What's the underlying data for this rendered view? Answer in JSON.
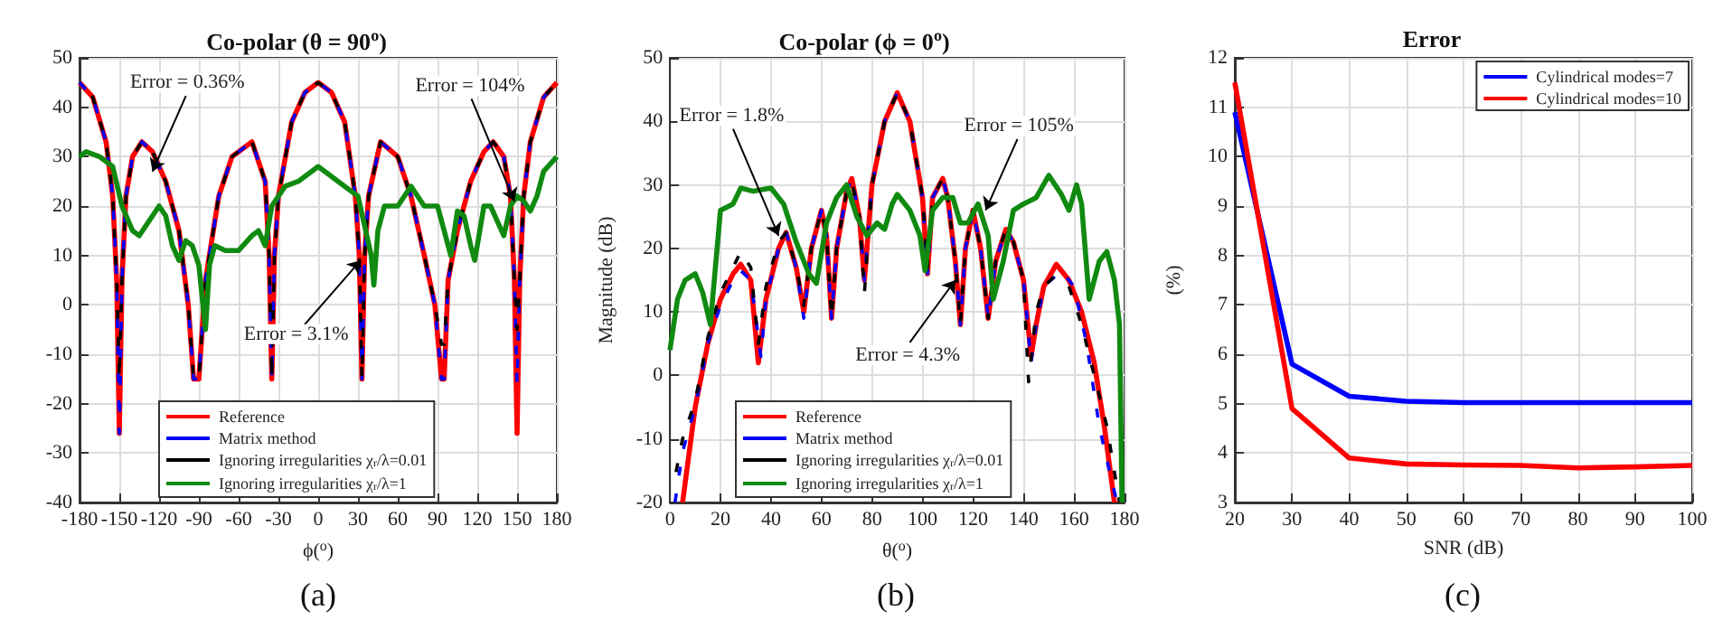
{
  "chart_data": [
    {
      "type": "line",
      "title": "Co-polar (θ = 90$^{o}$)",
      "xlabel": "ϕ($^{o}$)",
      "xlim": [
        -180,
        180
      ],
      "xticks": [
        -180,
        -150,
        -120,
        -90,
        -60,
        -30,
        0,
        30,
        60,
        90,
        120,
        150,
        180
      ],
      "ylim": [
        -40,
        50
      ],
      "yticks": [
        -40,
        -30,
        -20,
        -10,
        0,
        10,
        20,
        30,
        40,
        50
      ],
      "grid": true,
      "legend": "bottom",
      "marker": "none",
      "series": [
        {
          "name": "Reference",
          "color": "#ff0000",
          "line_style": "solid",
          "x": [
            -180,
            -170,
            -160,
            -155,
            -152,
            -150,
            -148,
            -145,
            -140,
            -133,
            -125,
            -115,
            -105,
            -98,
            -94,
            -92,
            -90,
            -85,
            -75,
            -65,
            -50,
            -40,
            -37,
            -35,
            -33,
            -30,
            -20,
            -10,
            0,
            10,
            20,
            28,
            31,
            33,
            35,
            38,
            47,
            60,
            70,
            80,
            88,
            93,
            95,
            98,
            105,
            115,
            125,
            132,
            140,
            145,
            148,
            150,
            152,
            155,
            160,
            170,
            180
          ],
          "values": [
            45,
            42,
            33,
            22,
            5,
            -26,
            5,
            22,
            30,
            33,
            31,
            25,
            15,
            0,
            -15,
            -15,
            -15,
            5,
            22,
            30,
            33,
            25,
            10,
            -15,
            10,
            22,
            37,
            43,
            45,
            43,
            37,
            22,
            10,
            -15,
            10,
            22,
            33,
            30,
            22,
            10,
            0,
            -15,
            -15,
            5,
            15,
            25,
            31,
            33,
            30,
            22,
            5,
            -26,
            5,
            22,
            33,
            42,
            45
          ]
        },
        {
          "name": "Matrix method",
          "color": "#0000ff",
          "line_style": "dashed",
          "x": [
            -180,
            -170,
            -160,
            -155,
            -152,
            -150,
            -148,
            -145,
            -140,
            -133,
            -125,
            -115,
            -105,
            -98,
            -94,
            -92,
            -90,
            -85,
            -75,
            -65,
            -50,
            -40,
            -37,
            -35,
            -33,
            -30,
            -20,
            -10,
            0,
            10,
            20,
            28,
            31,
            33,
            35,
            38,
            47,
            60,
            70,
            80,
            88,
            93,
            95,
            98,
            105,
            115,
            125,
            132,
            140,
            145,
            148,
            150,
            152,
            155,
            160,
            170,
            180
          ],
          "values": [
            45,
            42,
            33,
            22,
            5,
            -26,
            5,
            22,
            30,
            33,
            31,
            25,
            15,
            0,
            -15,
            -15,
            -15,
            5,
            22,
            30,
            33,
            25,
            10,
            -15,
            10,
            22,
            37,
            43,
            45,
            43,
            37,
            22,
            10,
            -15,
            10,
            22,
            33,
            30,
            22,
            10,
            0,
            -15,
            -15,
            5,
            15,
            25,
            31,
            33,
            30,
            22,
            5,
            -16,
            5,
            22,
            33,
            42,
            45
          ]
        },
        {
          "name": "Ignoring irregularities χ$_{r}$/λ=0.01",
          "color": "#000000",
          "line_style": "dashed",
          "x": [
            -180,
            -170,
            -160,
            -155,
            -152,
            -150,
            -148,
            -145,
            -140,
            -133,
            -125,
            -115,
            -105,
            -98,
            -94,
            -92,
            -90,
            -85,
            -75,
            -65,
            -50,
            -40,
            -37,
            -35,
            -33,
            -30,
            -20,
            -10,
            0,
            10,
            20,
            28,
            31,
            33,
            35,
            38,
            47,
            60,
            70,
            80,
            88,
            93,
            95,
            98,
            105,
            115,
            125,
            132,
            140,
            145,
            148,
            150,
            152,
            155,
            160,
            170,
            180
          ],
          "values": [
            45,
            42,
            33,
            22,
            5,
            -15,
            5,
            22,
            30,
            33,
            31,
            25,
            15,
            0,
            -15,
            -15,
            -15,
            5,
            22,
            30,
            33,
            25,
            10,
            -15,
            10,
            22,
            37,
            43,
            45,
            43,
            37,
            22,
            10,
            -15,
            10,
            22,
            33,
            30,
            22,
            10,
            0,
            -8,
            -8,
            5,
            15,
            25,
            31,
            33,
            30,
            22,
            5,
            -5,
            5,
            22,
            33,
            42,
            45
          ]
        },
        {
          "name": "Ignoring irregularities χ$_{r}$/λ=1",
          "color": "#108a10",
          "line_style": "solid",
          "x": [
            -180,
            -175,
            -165,
            -155,
            -148,
            -140,
            -135,
            -130,
            -120,
            -115,
            -110,
            -105,
            -100,
            -95,
            -90,
            -85,
            -82,
            -78,
            -70,
            -60,
            -50,
            -45,
            -40,
            -35,
            -25,
            -15,
            -10,
            0,
            5,
            10,
            20,
            30,
            35,
            40,
            42,
            45,
            50,
            55,
            60,
            70,
            80,
            85,
            90,
            95,
            100,
            105,
            110,
            115,
            118,
            120,
            125,
            130,
            135,
            140,
            145,
            150,
            155,
            160,
            165,
            170,
            180
          ],
          "values": [
            30,
            31,
            30,
            28,
            20,
            15,
            14,
            16,
            20,
            18,
            12,
            9,
            13,
            12,
            8,
            -5,
            8,
            12,
            11,
            11,
            14,
            15,
            12,
            20,
            24,
            25,
            26,
            28,
            27,
            26,
            24,
            22,
            16,
            10,
            4,
            15,
            20,
            20,
            20,
            24,
            20,
            20,
            20,
            15,
            10,
            19,
            18,
            12,
            9,
            12,
            20,
            20,
            17,
            14,
            20,
            22,
            21,
            19,
            22,
            27,
            30
          ]
        }
      ],
      "annotations": [
        {
          "text": "Error = 0.36%",
          "x": -125,
          "y": 27
        },
        {
          "text": "Error = 104%",
          "x": 148,
          "y": 21
        },
        {
          "text": "Error = 3.1%",
          "x": 32,
          "y": 9
        },
        "(a)"
      ]
    },
    {
      "type": "line",
      "title": "Co-polar (ϕ = 0$^{o}$)",
      "xlabel": "θ($^{o}$)",
      "ylabel": "Magnitude (dB)",
      "xlim": [
        0,
        180
      ],
      "xticks": [
        0,
        20,
        40,
        60,
        80,
        100,
        120,
        140,
        160,
        180
      ],
      "ylim": [
        -20,
        50
      ],
      "yticks": [
        -20,
        -10,
        0,
        10,
        20,
        30,
        40,
        50
      ],
      "grid": true,
      "legend": "bottom",
      "marker": "none",
      "series": [
        {
          "name": "Reference",
          "color": "#ff0000",
          "line_style": "solid",
          "x": [
            5,
            10,
            15,
            20,
            25,
            28,
            32,
            35,
            38,
            43,
            46,
            50,
            53,
            56,
            60,
            62,
            64,
            66,
            70,
            72,
            75,
            77,
            80,
            85,
            90,
            95,
            100,
            102,
            104,
            108,
            110,
            113,
            115,
            117,
            120,
            123,
            126,
            129,
            133,
            136,
            140,
            143,
            145,
            148,
            153,
            158,
            163,
            168,
            172,
            176
          ],
          "values": [
            -20,
            -5,
            5,
            12,
            16,
            17.5,
            15,
            2,
            12,
            20,
            22.5,
            17,
            10,
            20,
            26,
            22,
            9,
            20,
            29,
            31,
            25,
            15,
            30,
            40,
            44.5,
            40,
            28,
            16,
            28,
            31,
            28,
            18,
            8,
            20,
            26,
            20,
            9,
            18,
            23,
            21,
            15,
            3,
            8,
            14,
            17.5,
            15,
            10,
            2,
            -8,
            -20
          ]
        },
        {
          "name": "Matrix method",
          "color": "#0000ff",
          "line_style": "dashed",
          "x": [
            2,
            5,
            10,
            15,
            20,
            25,
            28,
            32,
            36,
            38,
            43,
            46,
            50,
            53,
            56,
            60,
            62,
            64,
            66,
            70,
            72,
            75,
            77,
            80,
            85,
            90,
            95,
            100,
            102,
            104,
            108,
            110,
            113,
            115,
            117,
            120,
            123,
            126,
            129,
            133,
            136,
            140,
            143,
            145,
            148,
            155,
            160,
            165,
            170,
            174,
            177
          ],
          "values": [
            -20,
            -12,
            -5,
            5,
            11,
            15,
            16.5,
            15,
            3,
            12,
            20,
            22.5,
            17,
            9,
            20,
            26,
            22,
            9,
            20,
            29,
            31,
            25,
            15,
            30,
            40,
            44.5,
            40,
            28,
            16,
            28,
            31,
            28,
            18,
            8,
            20,
            26,
            20,
            9,
            18,
            23,
            21,
            15,
            2,
            8,
            14,
            16.5,
            14,
            5,
            -8,
            -15,
            -20
          ]
        },
        {
          "name": "Ignoring irregularities χ$_{r}$/λ=0.01",
          "color": "#000000",
          "line_style": "dashed",
          "x": [
            1,
            5,
            10,
            15,
            20,
            25,
            28,
            32,
            35,
            38,
            43,
            46,
            50,
            53,
            56,
            60,
            62,
            64,
            66,
            70,
            72,
            75,
            77,
            80,
            85,
            90,
            95,
            100,
            102,
            104,
            108,
            110,
            113,
            115,
            117,
            120,
            123,
            126,
            129,
            133,
            136,
            140,
            142,
            145,
            148,
            152,
            158,
            163,
            168,
            173,
            178
          ],
          "values": [
            -18,
            -10,
            -4,
            6,
            13,
            17,
            19.5,
            17,
            5,
            14,
            21,
            22.5,
            17,
            11,
            20,
            26,
            22,
            9,
            20,
            29,
            30.5,
            25,
            13,
            30,
            40,
            44.5,
            40,
            28,
            17,
            28,
            31,
            28,
            18,
            8,
            20,
            26,
            20,
            9,
            18,
            23,
            21,
            15,
            -1,
            10,
            14,
            15.5,
            14,
            8,
            0,
            -8,
            -20
          ]
        },
        {
          "name": "Ignoring irregularities χ$_{r}$/λ=1",
          "color": "#108a10",
          "line_style": "solid",
          "x": [
            0,
            3,
            6,
            10,
            13,
            16,
            20,
            25,
            28,
            33,
            40,
            45,
            50,
            55,
            58,
            62,
            66,
            70,
            74,
            78,
            82,
            85,
            88,
            90,
            95,
            99,
            101,
            104,
            108,
            112,
            115,
            118,
            122,
            126,
            128,
            132,
            136,
            140,
            145,
            150,
            155,
            158,
            161,
            163,
            166,
            170,
            173,
            176,
            178,
            179
          ],
          "values": [
            4,
            12,
            15,
            16,
            13,
            8,
            26,
            27,
            29.5,
            29,
            29.5,
            27,
            21,
            16,
            14.5,
            24,
            28,
            30,
            25,
            22,
            24,
            23,
            27,
            28.5,
            26,
            22,
            16.5,
            26,
            28,
            28,
            24,
            24,
            27,
            22,
            12,
            18,
            26,
            27,
            28,
            31.5,
            28.5,
            26,
            30,
            27,
            12,
            18,
            19.5,
            15,
            8,
            -20
          ]
        }
      ],
      "annotations": [
        {
          "text": "Error = 1.8%",
          "x": 43,
          "y": 22
        },
        {
          "text": "Error = 105%",
          "x": 125,
          "y": 26
        },
        {
          "text": "Error = 4.3%",
          "x": 113,
          "y": 15
        },
        "(b)"
      ]
    },
    {
      "type": "line",
      "title": "Error",
      "xlabel": "SNR (dB)",
      "ylabel": "(%)",
      "xlim": [
        20,
        100
      ],
      "xticks": [
        20,
        30,
        40,
        50,
        60,
        70,
        80,
        90,
        100
      ],
      "ylim": [
        3,
        12
      ],
      "yticks": [
        3,
        4,
        5,
        6,
        7,
        8,
        9,
        10,
        11,
        12
      ],
      "grid": true,
      "legend": "top right",
      "marker": "none",
      "series": [
        {
          "name": "Cylindrical modes=7",
          "color": "#0000ff",
          "line_style": "solid",
          "x": [
            20,
            30,
            40,
            50,
            60,
            70,
            80,
            90,
            100
          ],
          "values": [
            10.9,
            5.8,
            5.15,
            5.05,
            5.02,
            5.02,
            5.02,
            5.02,
            5.02
          ]
        },
        {
          "name": "Cylindrical modes=10",
          "color": "#ff0000",
          "line_style": "solid",
          "x": [
            20,
            30,
            40,
            50,
            60,
            70,
            80,
            90,
            100
          ],
          "values": [
            11.5,
            4.9,
            3.9,
            3.78,
            3.76,
            3.75,
            3.7,
            3.72,
            3.75
          ]
        }
      ],
      "annotations": [
        "(c)"
      ]
    }
  ]
}
